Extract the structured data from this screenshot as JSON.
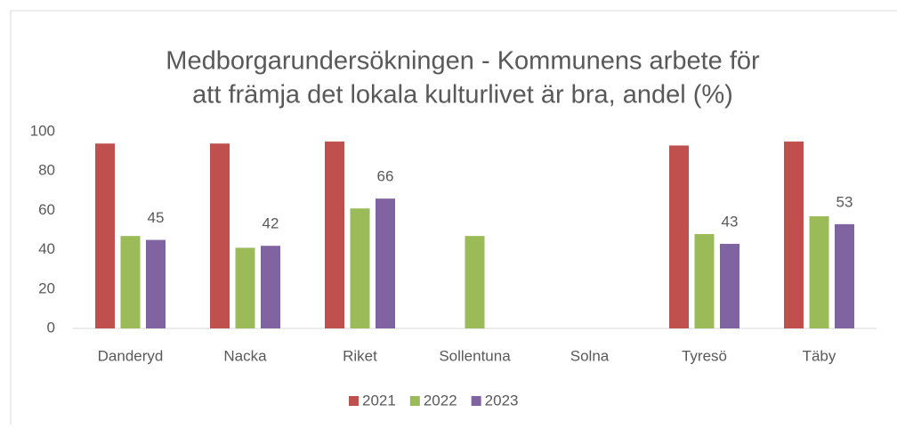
{
  "chart_data": {
    "type": "bar",
    "title": [
      "Medborgarundersökningen - Kommunens arbete för",
      "att främja det lokala kulturlivet är bra, andel (%)"
    ],
    "categories": [
      "Danderyd",
      "Nacka",
      "Riket",
      "Sollentuna",
      "Solna",
      "Tyresö",
      "Täby"
    ],
    "series": [
      {
        "name": "2021",
        "color": "#c0504d",
        "values": [
          94,
          94,
          95,
          null,
          null,
          93,
          95
        ]
      },
      {
        "name": "2022",
        "color": "#9bbb59",
        "values": [
          47,
          41,
          61,
          47,
          null,
          48,
          57
        ]
      },
      {
        "name": "2023",
        "color": "#8064a2",
        "values": [
          45,
          42,
          66,
          null,
          null,
          43,
          53
        ],
        "data_labels": true
      }
    ],
    "ylim": [
      0,
      100
    ],
    "yticks": [
      0,
      20,
      40,
      60,
      80,
      100
    ],
    "grid": false,
    "legend": "bottom"
  }
}
